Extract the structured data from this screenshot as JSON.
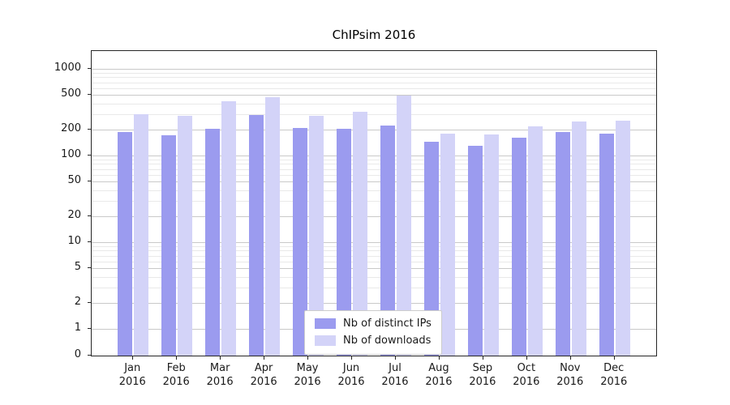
{
  "title": "ChIPsim 2016",
  "colors": {
    "ips": "#9b9bef",
    "downloads": "#d3d3f8",
    "grid_major": "#c9c9c9",
    "grid_minor": "#e9e9e9",
    "axis": "#262626",
    "legend_border": "#cccccc"
  },
  "legend": {
    "position": "lower center",
    "entries": [
      {
        "label": "Nb of distinct IPs",
        "color_key": "ips"
      },
      {
        "label": "Nb of downloads",
        "color_key": "downloads"
      }
    ]
  },
  "chart_data": {
    "type": "bar",
    "title": "ChIPsim 2016",
    "y_scale": "symlog",
    "grid": true,
    "yticks": [
      0,
      1,
      2,
      5,
      10,
      20,
      50,
      100,
      200,
      500,
      1000
    ],
    "ylim": [
      0,
      1200
    ],
    "categories": [
      {
        "month": "Jan",
        "year": "2016"
      },
      {
        "month": "Feb",
        "year": "2016"
      },
      {
        "month": "Mar",
        "year": "2016"
      },
      {
        "month": "Apr",
        "year": "2016"
      },
      {
        "month": "May",
        "year": "2016"
      },
      {
        "month": "Jun",
        "year": "2016"
      },
      {
        "month": "Jul",
        "year": "2016"
      },
      {
        "month": "Aug",
        "year": "2016"
      },
      {
        "month": "Sep",
        "year": "2016"
      },
      {
        "month": "Oct",
        "year": "2016"
      },
      {
        "month": "Nov",
        "year": "2016"
      },
      {
        "month": "Dec",
        "year": "2016"
      }
    ],
    "series": [
      {
        "name": "Nb of distinct IPs",
        "color_key": "ips",
        "values": [
          185,
          170,
          205,
          295,
          210,
          205,
          220,
          145,
          130,
          160,
          185,
          180
        ]
      },
      {
        "name": "Nb of downloads",
        "color_key": "downloads",
        "values": [
          300,
          285,
          420,
          470,
          285,
          320,
          490,
          180,
          175,
          215,
          245,
          250
        ]
      }
    ]
  }
}
